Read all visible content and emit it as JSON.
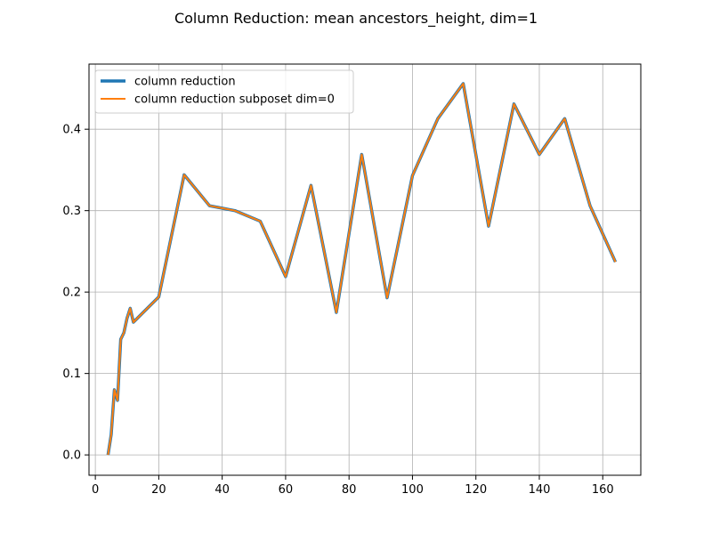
{
  "chart_data": {
    "type": "line",
    "title": "Column Reduction: mean ancestors_height, dim=1",
    "xlabel": "",
    "ylabel": "",
    "xlim": [
      -2,
      172
    ],
    "ylim": [
      -0.025,
      0.48
    ],
    "xticks": [
      0,
      20,
      40,
      60,
      80,
      100,
      120,
      140,
      160
    ],
    "yticks": [
      0.0,
      0.1,
      0.2,
      0.3,
      0.4
    ],
    "xtick_labels": [
      "0",
      "20",
      "40",
      "60",
      "80",
      "100",
      "120",
      "140",
      "160"
    ],
    "ytick_labels": [
      "0.0",
      "0.1",
      "0.2",
      "0.3",
      "0.4"
    ],
    "grid": true,
    "legend_position": "top-left",
    "x": [
      4,
      5,
      6,
      7,
      8,
      9,
      10,
      11,
      12,
      20,
      28,
      36,
      44,
      52,
      60,
      68,
      76,
      84,
      92,
      100,
      108,
      116,
      124,
      132,
      140,
      148,
      156,
      164
    ],
    "series": [
      {
        "name": "column reduction",
        "color": "#1f77b4",
        "values": [
          0.0,
          0.025,
          0.08,
          0.067,
          0.142,
          0.15,
          0.168,
          0.18,
          0.163,
          0.194,
          0.344,
          0.306,
          0.3,
          0.287,
          0.219,
          0.331,
          0.175,
          0.369,
          0.193,
          0.343,
          0.413,
          0.456,
          0.281,
          0.431,
          0.369,
          0.413,
          0.306,
          0.237
        ]
      },
      {
        "name": "column reduction subposet dim=0",
        "color": "#ff7f0e",
        "values": [
          0.0,
          0.025,
          0.08,
          0.067,
          0.142,
          0.15,
          0.168,
          0.18,
          0.163,
          0.194,
          0.344,
          0.306,
          0.3,
          0.287,
          0.219,
          0.331,
          0.175,
          0.369,
          0.193,
          0.343,
          0.413,
          0.456,
          0.281,
          0.431,
          0.369,
          0.413,
          0.306,
          0.237
        ]
      }
    ]
  }
}
